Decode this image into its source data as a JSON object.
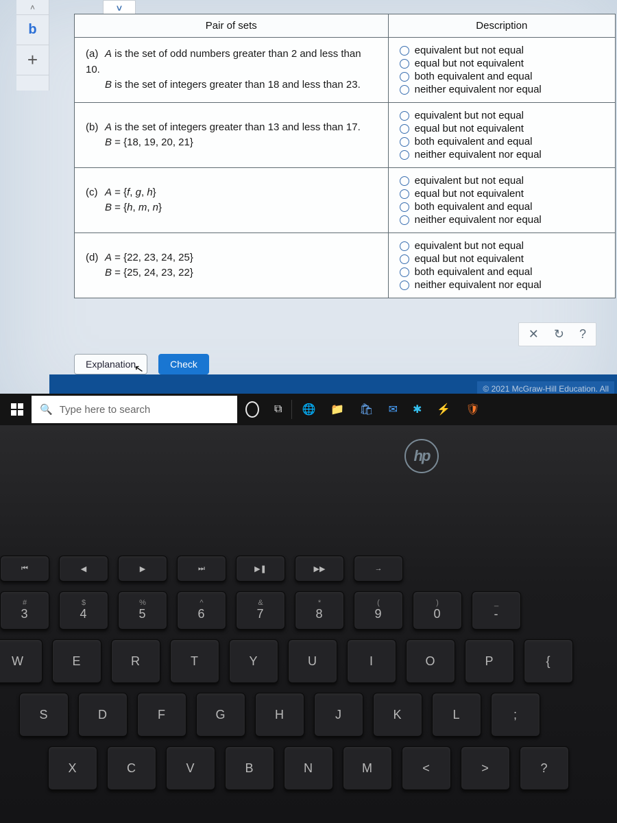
{
  "browser_tabs": {
    "logo": "b",
    "plus": "+"
  },
  "dropdown_glyph": "˅",
  "table": {
    "headers": {
      "pair": "Pair of sets",
      "desc": "Description"
    },
    "options": [
      "equivalent but not equal",
      "equal but not equivalent",
      "both equivalent and equal",
      "neither equivalent nor equal"
    ],
    "rows": [
      {
        "label": "(a)",
        "lineA_html": "<i>A</i> is the set of odd numbers greater than 2 and less than 10.",
        "lineB_html": "<i>B</i> is the set of integers greater than 18 and less than 23."
      },
      {
        "label": "(b)",
        "lineA_html": "<i>A</i> is the set of integers greater than 13 and less than 17.",
        "lineB_html": "<i>B</i> = {18, 19, 20, 21}"
      },
      {
        "label": "(c)",
        "lineA_html": "<i>A</i> = {<i>f</i>, <i>g</i>, <i>h</i>}",
        "lineB_html": "<i>B</i> = {<i>h</i>, <i>m</i>, <i>n</i>}"
      },
      {
        "label": "(d)",
        "lineA_html": "<i>A</i> = {22, 23, 24, 25}",
        "lineB_html": "<i>B</i> = {25, 24, 23, 22}"
      }
    ]
  },
  "toolbar": {
    "close": "✕",
    "reset": "↻",
    "help": "?"
  },
  "buttons": {
    "explanation": "Explanation",
    "check": "Check"
  },
  "copyright": "© 2021 McGraw-Hill Education. All",
  "taskbar": {
    "search_placeholder": "Type here to search",
    "icons": [
      "⊞",
      "◯",
      "⧉",
      "🧭",
      "📁",
      "🧮",
      "✉",
      "⚙",
      "✔",
      "🔇"
    ]
  },
  "hp": "hp",
  "keyboard": {
    "fn": [
      "⏮",
      "◀",
      "▶",
      "⏭",
      "▶❚",
      "▶▶",
      "→"
    ],
    "num": [
      {
        "top": "#",
        "main": "3"
      },
      {
        "top": "$",
        "main": "4"
      },
      {
        "top": "%",
        "main": "5"
      },
      {
        "top": "^",
        "main": "6"
      },
      {
        "top": "&",
        "main": "7"
      },
      {
        "top": "*",
        "main": "8"
      },
      {
        "top": "(",
        "main": "9"
      },
      {
        "top": ")",
        "main": "0"
      },
      {
        "top": "_",
        "main": "-"
      }
    ],
    "q": [
      "W",
      "E",
      "R",
      "T",
      "Y",
      "U",
      "I",
      "O",
      "P",
      "{"
    ],
    "a": [
      "S",
      "D",
      "F",
      "G",
      "H",
      "J",
      "K",
      "L",
      ";"
    ],
    "z": [
      "X",
      "C",
      "V",
      "B",
      "N",
      "M",
      "<",
      ">",
      "?"
    ]
  },
  "colors": {
    "link_blue": "#2a6fd6",
    "radio_border": "#3a6fb0",
    "taskbar_bg": "#141414",
    "bluestrip": "#0f4f94",
    "check_btn": "#1976d2"
  }
}
